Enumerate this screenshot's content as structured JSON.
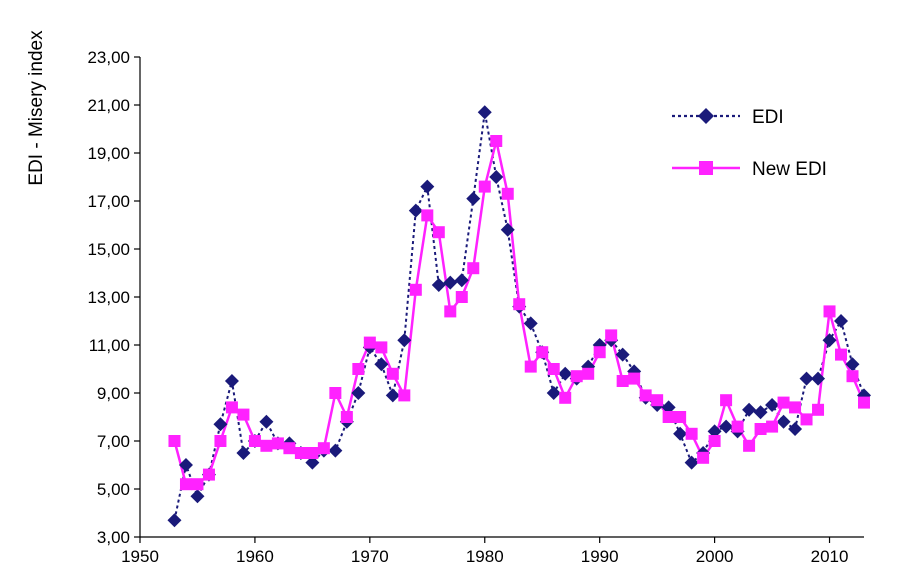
{
  "chart_data": {
    "type": "line",
    "title": "",
    "xlabel": "",
    "ylabel": "EDI - Misery index",
    "xlim": [
      1950,
      2013
    ],
    "ylim": [
      3,
      23
    ],
    "x_ticks": [
      1950,
      1960,
      1970,
      1980,
      1990,
      2000,
      2010
    ],
    "y_ticks": [
      "3,00",
      "5,00",
      "7,00",
      "9,00",
      "11,00",
      "13,00",
      "15,00",
      "17,00",
      "19,00",
      "21,00",
      "23,00"
    ],
    "y_tick_values": [
      3,
      5,
      7,
      9,
      11,
      13,
      15,
      17,
      19,
      21,
      23
    ],
    "grid": false,
    "legend_position": "top-right",
    "x": [
      1953,
      1954,
      1955,
      1956,
      1957,
      1958,
      1959,
      1960,
      1961,
      1962,
      1963,
      1964,
      1965,
      1966,
      1967,
      1968,
      1969,
      1970,
      1971,
      1972,
      1973,
      1974,
      1975,
      1976,
      1977,
      1978,
      1979,
      1980,
      1981,
      1982,
      1983,
      1984,
      1985,
      1986,
      1987,
      1988,
      1989,
      1990,
      1991,
      1992,
      1993,
      1994,
      1995,
      1996,
      1997,
      1998,
      1999,
      2000,
      2001,
      2002,
      2003,
      2004,
      2005,
      2006,
      2007,
      2008,
      2009,
      2010,
      2011,
      2012,
      2013
    ],
    "series": [
      {
        "name": "EDI",
        "color": "#1a1a7a",
        "values": [
          3.7,
          6.0,
          4.7,
          5.6,
          7.7,
          9.5,
          6.5,
          7.0,
          7.8,
          6.9,
          6.9,
          6.5,
          6.1,
          6.6,
          6.6,
          7.8,
          9.0,
          10.9,
          10.2,
          8.9,
          11.2,
          16.6,
          17.6,
          13.5,
          13.6,
          13.7,
          17.1,
          20.7,
          18.0,
          15.8,
          12.6,
          11.9,
          10.7,
          9.0,
          9.8,
          9.6,
          10.1,
          11.0,
          11.2,
          10.6,
          9.9,
          8.8,
          8.5,
          8.4,
          7.3,
          6.1,
          6.5,
          7.4,
          7.6,
          7.4,
          8.3,
          8.2,
          8.5,
          7.8,
          7.5,
          9.6,
          9.6,
          11.2,
          12.0,
          10.2,
          8.9
        ]
      },
      {
        "name": "New EDI",
        "color": "#ff22ff",
        "values": [
          7.0,
          5.2,
          5.2,
          5.6,
          7.0,
          8.4,
          8.1,
          7.0,
          6.8,
          6.9,
          6.7,
          6.5,
          6.5,
          6.7,
          9.0,
          8.0,
          10.0,
          11.1,
          10.9,
          9.8,
          8.9,
          13.3,
          16.4,
          15.7,
          12.4,
          13.0,
          14.2,
          17.6,
          19.5,
          17.3,
          12.7,
          10.1,
          10.7,
          10.0,
          8.8,
          9.7,
          9.8,
          10.7,
          11.4,
          9.5,
          9.6,
          8.9,
          8.7,
          8.0,
          8.0,
          7.3,
          6.3,
          7.0,
          8.7,
          7.6,
          6.8,
          7.5,
          7.6,
          8.6,
          8.4,
          7.9,
          8.3,
          12.4,
          10.6,
          9.7,
          8.6
        ]
      }
    ]
  }
}
